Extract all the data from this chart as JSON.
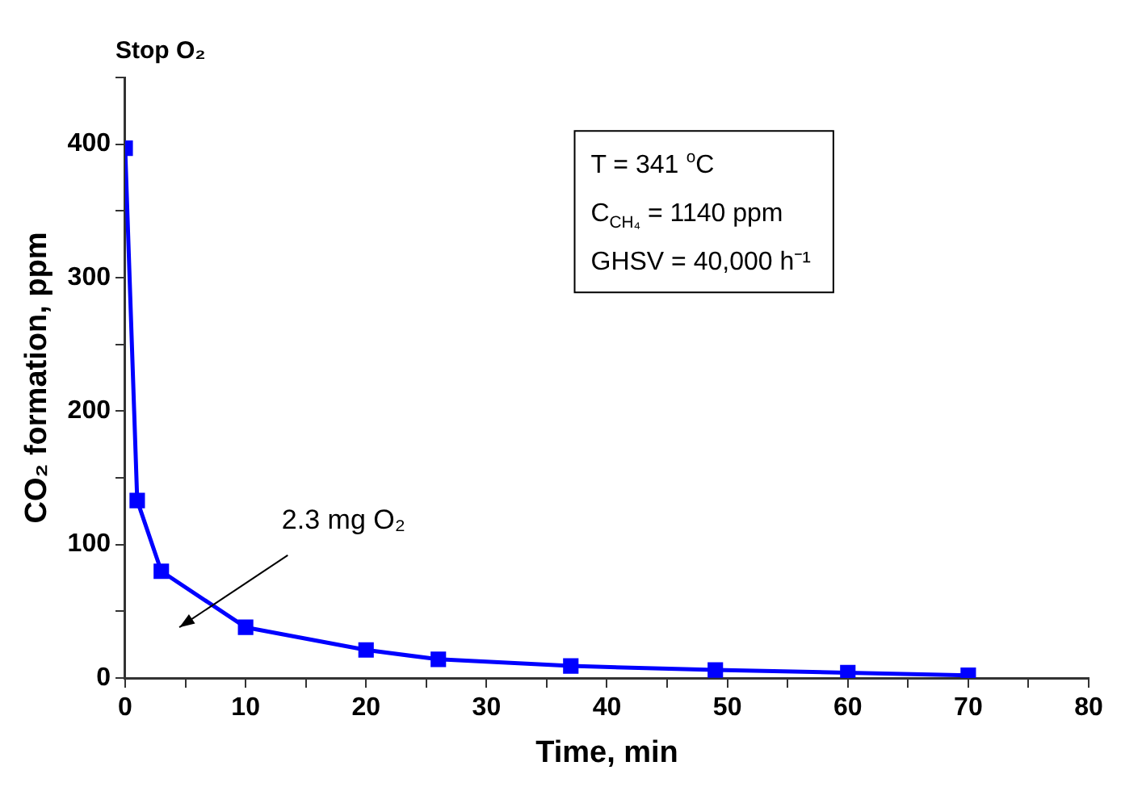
{
  "chart_data": {
    "type": "line",
    "xlabel": "Time, min",
    "ylabel": "CO₂ formation, ppm",
    "x": [
      0,
      1,
      3,
      10,
      20,
      26,
      37,
      49,
      60,
      70
    ],
    "series": [
      {
        "color": "#0000ff",
        "values": [
          397,
          133,
          80,
          38,
          21,
          14,
          9,
          6,
          4,
          2
        ]
      }
    ],
    "xlim": [
      0,
      80
    ],
    "ylim": [
      0,
      450
    ],
    "xticks": [
      0,
      {
        "value": 5,
        "label": null
      },
      10,
      {
        "value": 15,
        "label": null
      },
      20,
      {
        "value": 25,
        "label": null
      },
      30,
      {
        "value": 35,
        "label": null
      },
      40,
      {
        "value": 45,
        "label": null
      },
      50,
      {
        "value": 55,
        "label": null
      },
      60,
      {
        "value": 65,
        "label": null
      },
      70,
      {
        "value": 75,
        "label": null
      },
      80
    ],
    "yticks": [
      0,
      {
        "value": 50,
        "label": null
      },
      100,
      {
        "value": 150,
        "label": null
      },
      200,
      {
        "value": 250,
        "label": null
      },
      300,
      {
        "value": 350,
        "label": null
      },
      400,
      {
        "value": 450,
        "label": null
      }
    ],
    "grid": false,
    "legend": false,
    "marker": "square",
    "line_style": "solid",
    "annotations": [
      "Stop O₂",
      "T = 341 $^{o}$C",
      "C$_{CH₄}$ = 1140 ppm",
      "GHSV = 40,000 h⁻¹",
      "2.3 mg O₂"
    ]
  }
}
